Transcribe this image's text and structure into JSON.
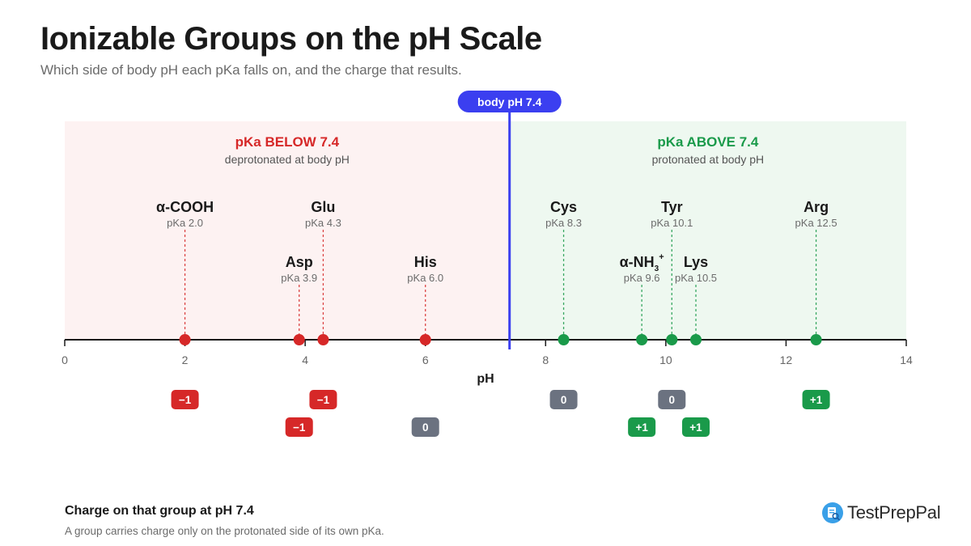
{
  "header": {
    "title": "Ionizable Groups on the pH Scale",
    "subtitle": "Which side of body pH each pKa falls on, and the charge that results."
  },
  "marker": {
    "label": "body pH 7.4",
    "value": 7.4
  },
  "regions": {
    "below": {
      "title": "pKa BELOW 7.4",
      "subtitle": "deprotonated at body pH",
      "color": "#d62828",
      "fill": "#fdf2f2"
    },
    "above": {
      "title": "pKa ABOVE 7.4",
      "subtitle": "protonated at body pH",
      "color": "#1a9a4a",
      "fill": "#eef8f0"
    }
  },
  "axis": {
    "label": "pH",
    "min": 0,
    "max": 14,
    "ticks": [
      0,
      2,
      4,
      6,
      8,
      10,
      12,
      14
    ]
  },
  "groups": [
    {
      "name": "α-COOH",
      "pka_label": "pKa 2.0",
      "pka": 2.0,
      "row": 1,
      "charge": "−1",
      "charge_type": "negative"
    },
    {
      "name": "Asp",
      "pka_label": "pKa 3.9",
      "pka": 3.9,
      "row": 2,
      "charge": "−1",
      "charge_type": "negative"
    },
    {
      "name": "Glu",
      "pka_label": "pKa 4.3",
      "pka": 4.3,
      "row": 1,
      "charge": "−1",
      "charge_type": "negative"
    },
    {
      "name": "His",
      "pka_label": "pKa 6.0",
      "pka": 6.0,
      "row": 2,
      "charge": "0",
      "charge_type": "neutral"
    },
    {
      "name": "Cys",
      "pka_label": "pKa 8.3",
      "pka": 8.3,
      "row": 1,
      "charge": "0",
      "charge_type": "neutral"
    },
    {
      "name": "α-NH",
      "name_sub": "3",
      "name_sup": "+",
      "pka_label": "pKa 9.6",
      "pka": 9.6,
      "row": 2,
      "charge": "+1",
      "charge_type": "positive"
    },
    {
      "name": "Tyr",
      "pka_label": "pKa 10.1",
      "pka": 10.1,
      "row": 1,
      "charge": "0",
      "charge_type": "neutral"
    },
    {
      "name": "Lys",
      "pka_label": "pKa 10.5",
      "pka": 10.5,
      "row": 2,
      "charge": "+1",
      "charge_type": "positive"
    },
    {
      "name": "Arg",
      "pka_label": "pKa 12.5",
      "pka": 12.5,
      "row": 1,
      "charge": "+1",
      "charge_type": "positive"
    }
  ],
  "colors": {
    "negative": "#d62828",
    "neutral": "#6b7280",
    "positive": "#1a9a4a",
    "marker": "#3b3ff0"
  },
  "footer": {
    "title": "Charge on that group at pH 7.4",
    "note": "A group carries charge only on the protonated side of its own pKa."
  },
  "logo": {
    "text": "TestPrepPal"
  }
}
